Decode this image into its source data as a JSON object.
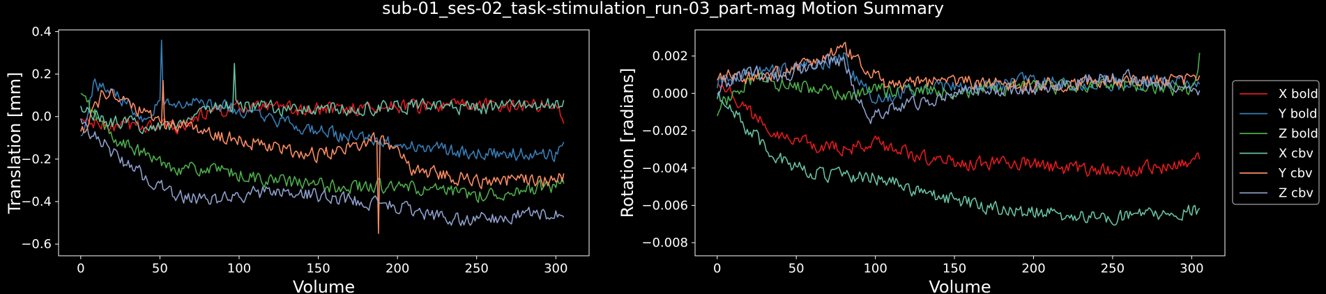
{
  "figure": {
    "title": "sub-01_ses-02_task-stimulation_run-03_part-mag Motion Summary"
  },
  "colors": {
    "X bold": "#e41a1c",
    "Y bold": "#377eb8",
    "Z bold": "#4daf4a",
    "X cbv": "#66c2a5",
    "Y cbv": "#fc8d62",
    "Z cbv": "#8da0cb"
  },
  "chart_data": [
    {
      "type": "line",
      "xlabel": "Volume",
      "ylabel": "Translation [mm]",
      "xlim": [
        -14,
        321
      ],
      "ylim": [
        -0.655,
        0.408
      ],
      "xticks": [
        0,
        50,
        100,
        150,
        200,
        250,
        300
      ],
      "yticks": [
        -0.6,
        -0.4,
        -0.2,
        0.0,
        0.2,
        0.4
      ],
      "ytick_labels": [
        "−0.6",
        "−0.4",
        "−0.2",
        "0.0",
        "0.2",
        "0.4"
      ],
      "n_volumes": 306,
      "series": [
        {
          "name": "X bold",
          "keypoints": [
            [
              0,
              -0.02
            ],
            [
              20,
              -0.05
            ],
            [
              40,
              -0.04
            ],
            [
              60,
              -0.05
            ],
            [
              80,
              0.02
            ],
            [
              100,
              0.04
            ],
            [
              140,
              0.03
            ],
            [
              200,
              0.05
            ],
            [
              250,
              0.05
            ],
            [
              300,
              0.06
            ],
            [
              305,
              -0.03
            ]
          ]
        },
        {
          "name": "Y bold",
          "keypoints": [
            [
              0,
              -0.1
            ],
            [
              8,
              0.15
            ],
            [
              20,
              0.12
            ],
            [
              40,
              0.0
            ],
            [
              50,
              0.07
            ],
            [
              70,
              0.06
            ],
            [
              90,
              0.05
            ],
            [
              110,
              0.0
            ],
            [
              140,
              -0.05
            ],
            [
              170,
              -0.1
            ],
            [
              200,
              -0.13
            ],
            [
              250,
              -0.17
            ],
            [
              300,
              -0.18
            ],
            [
              305,
              -0.1
            ]
          ],
          "spikes": [
            [
              51,
              0.36
            ]
          ]
        },
        {
          "name": "Z bold",
          "keypoints": [
            [
              0,
              0.1
            ],
            [
              20,
              -0.1
            ],
            [
              40,
              -0.18
            ],
            [
              60,
              -0.24
            ],
            [
              80,
              -0.25
            ],
            [
              120,
              -0.3
            ],
            [
              160,
              -0.33
            ],
            [
              200,
              -0.33
            ],
            [
              250,
              -0.37
            ],
            [
              300,
              -0.33
            ],
            [
              305,
              -0.3
            ]
          ]
        },
        {
          "name": "X cbv",
          "keypoints": [
            [
              0,
              0.04
            ],
            [
              20,
              -0.03
            ],
            [
              40,
              -0.04
            ],
            [
              60,
              -0.04
            ],
            [
              80,
              0.04
            ],
            [
              100,
              0.05
            ],
            [
              150,
              0.03
            ],
            [
              200,
              0.05
            ],
            [
              250,
              0.04
            ],
            [
              300,
              0.06
            ],
            [
              305,
              0.05
            ]
          ],
          "spikes": [
            [
              97,
              0.25
            ]
          ]
        },
        {
          "name": "Y cbv",
          "keypoints": [
            [
              0,
              -0.08
            ],
            [
              15,
              0.12
            ],
            [
              30,
              0.05
            ],
            [
              50,
              -0.02
            ],
            [
              70,
              -0.05
            ],
            [
              90,
              -0.1
            ],
            [
              110,
              -0.12
            ],
            [
              150,
              -0.18
            ],
            [
              190,
              -0.1
            ],
            [
              210,
              -0.25
            ],
            [
              250,
              -0.3
            ],
            [
              300,
              -0.3
            ],
            [
              305,
              -0.28
            ]
          ],
          "spikes": [
            [
              52,
              0.17
            ],
            [
              188,
              -0.55
            ]
          ]
        },
        {
          "name": "Z cbv",
          "keypoints": [
            [
              0,
              -0.02
            ],
            [
              20,
              -0.17
            ],
            [
              40,
              -0.28
            ],
            [
              60,
              -0.37
            ],
            [
              80,
              -0.4
            ],
            [
              120,
              -0.35
            ],
            [
              160,
              -0.38
            ],
            [
              200,
              -0.42
            ],
            [
              230,
              -0.48
            ],
            [
              260,
              -0.48
            ],
            [
              300,
              -0.45
            ],
            [
              305,
              -0.49
            ]
          ]
        }
      ]
    },
    {
      "type": "line",
      "xlabel": "Volume",
      "ylabel": "Rotation [radians]",
      "xlim": [
        -14,
        321
      ],
      "ylim": [
        -0.0087,
        0.0034
      ],
      "xticks": [
        0,
        50,
        100,
        150,
        200,
        250,
        300
      ],
      "yticks": [
        -0.008,
        -0.006,
        -0.004,
        -0.002,
        0.0,
        0.002
      ],
      "ytick_labels": [
        "−0.008",
        "−0.006",
        "−0.004",
        "−0.002",
        "0.000",
        "0.002"
      ],
      "n_volumes": 306,
      "series": [
        {
          "name": "X bold",
          "keypoints": [
            [
              0,
              0.0008
            ],
            [
              20,
              -0.001
            ],
            [
              40,
              -0.0022
            ],
            [
              60,
              -0.0028
            ],
            [
              80,
              -0.003
            ],
            [
              100,
              -0.0027
            ],
            [
              130,
              -0.0034
            ],
            [
              160,
              -0.0038
            ],
            [
              190,
              -0.0037
            ],
            [
              220,
              -0.004
            ],
            [
              250,
              -0.0042
            ],
            [
              300,
              -0.0038
            ],
            [
              305,
              -0.0035
            ]
          ]
        },
        {
          "name": "Y bold",
          "keypoints": [
            [
              0,
              0.0006
            ],
            [
              20,
              0.001
            ],
            [
              40,
              0.0013
            ],
            [
              60,
              0.0015
            ],
            [
              80,
              0.002
            ],
            [
              90,
              0.0005
            ],
            [
              100,
              -0.0004
            ],
            [
              120,
              0.0002
            ],
            [
              150,
              0.0003
            ],
            [
              200,
              0.0007
            ],
            [
              250,
              0.0005
            ],
            [
              300,
              0.0006
            ],
            [
              305,
              0.0008
            ]
          ]
        },
        {
          "name": "Z bold",
          "keypoints": [
            [
              0,
              -0.0009
            ],
            [
              20,
              0.0008
            ],
            [
              40,
              0.0005
            ],
            [
              60,
              0.0003
            ],
            [
              80,
              -0.0002
            ],
            [
              100,
              0.0002
            ],
            [
              150,
              0.0001
            ],
            [
              200,
              0.0003
            ],
            [
              250,
              0.0005
            ],
            [
              300,
              0.0002
            ],
            [
              305,
              0.002
            ]
          ]
        },
        {
          "name": "X cbv",
          "keypoints": [
            [
              0,
              0.0
            ],
            [
              20,
              -0.002
            ],
            [
              40,
              -0.0035
            ],
            [
              60,
              -0.0043
            ],
            [
              80,
              -0.0044
            ],
            [
              100,
              -0.0045
            ],
            [
              130,
              -0.0053
            ],
            [
              160,
              -0.0059
            ],
            [
              190,
              -0.0063
            ],
            [
              220,
              -0.0065
            ],
            [
              250,
              -0.0066
            ],
            [
              300,
              -0.0063
            ],
            [
              305,
              -0.0064
            ]
          ]
        },
        {
          "name": "Y cbv",
          "keypoints": [
            [
              0,
              0.001
            ],
            [
              20,
              0.0008
            ],
            [
              40,
              0.0011
            ],
            [
              60,
              0.0017
            ],
            [
              80,
              0.0025
            ],
            [
              95,
              0.0012
            ],
            [
              110,
              0.0004
            ],
            [
              150,
              0.0007
            ],
            [
              200,
              0.0004
            ],
            [
              250,
              0.0006
            ],
            [
              300,
              0.0007
            ],
            [
              305,
              0.0009
            ]
          ]
        },
        {
          "name": "Z cbv",
          "keypoints": [
            [
              0,
              0.0003
            ],
            [
              20,
              0.0012
            ],
            [
              40,
              0.0008
            ],
            [
              60,
              0.0016
            ],
            [
              80,
              0.0018
            ],
            [
              95,
              -0.0015
            ],
            [
              110,
              -0.0008
            ],
            [
              150,
              0.0
            ],
            [
              200,
              0.0003
            ],
            [
              250,
              0.0009
            ],
            [
              300,
              0.0004
            ],
            [
              305,
              0.0003
            ]
          ]
        }
      ]
    }
  ],
  "legend": {
    "entries": [
      "X bold",
      "Y bold",
      "Z bold",
      "X cbv",
      "Y cbv",
      "Z cbv"
    ],
    "placement": "right"
  }
}
